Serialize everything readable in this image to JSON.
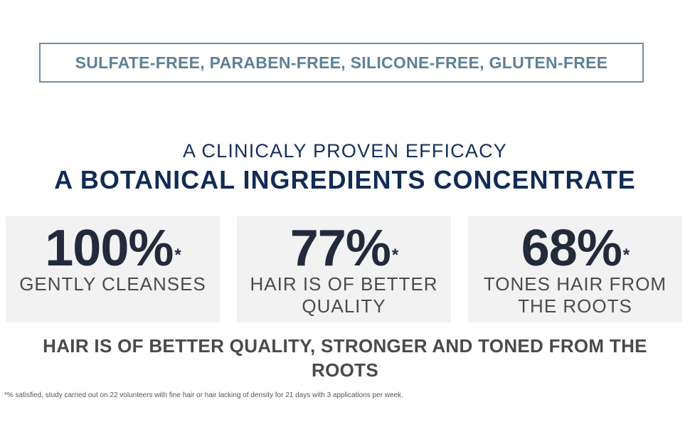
{
  "badge": {
    "text": "SULFATE-FREE, PARABEN-FREE, SILICONE-FREE, GLUTEN-FREE"
  },
  "headline": {
    "subtitle": "A CLINICALY PROVEN EFFICACY",
    "title": "A BOTANICAL INGREDIENTS CONCENTRATE"
  },
  "stats": [
    {
      "value": "100%",
      "mark": "*",
      "label": "GENTLY CLEANSES"
    },
    {
      "value": "77%",
      "mark": "*",
      "label": "HAIR IS OF BETTER QUALITY"
    },
    {
      "value": "68%",
      "mark": "*",
      "label": "TONES HAIR FROM THE ROOTS"
    }
  ],
  "summary": "HAIR IS OF BETTER QUALITY, STRONGER AND TONED FROM THE ROOTS",
  "footnote": "*% satisfied, study carried out on 22 volunteers with fine hair or hair lacking of density for 21 days with 3 applications per week.",
  "colors": {
    "badge_border": "#6f8ea4",
    "badge_text": "#5f8196",
    "headline": "#112b55",
    "stat_number": "#222a3c",
    "stat_background": "#f2f2f2"
  }
}
